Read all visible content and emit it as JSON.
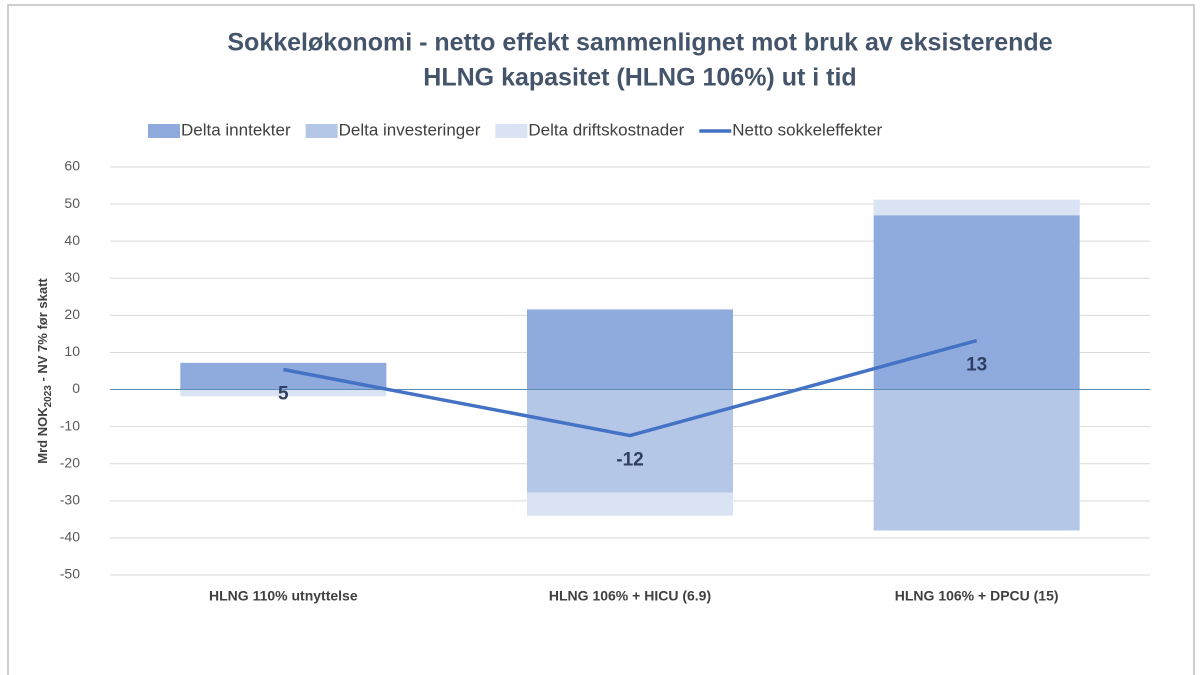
{
  "chart_data": {
    "type": "bar",
    "stacked": true,
    "title": [
      "Sokkeløkonomi - netto effekt sammenlignet mot bruk av eksisterende",
      "HLNG kapasitet (HLNG 106%) ut i tid"
    ],
    "ylabel": {
      "main": "Mrd NOK",
      "sub": "2023",
      "rest": " - NV 7% før skatt"
    },
    "categories": [
      "HLNG 110% utnyttelse",
      "HLNG 106% + HICU (6.9)",
      "HLNG 106% + DPCU (15)"
    ],
    "series": [
      {
        "name": "Delta inntekter",
        "color": "#8faadc",
        "values": [
          7.2,
          21.6,
          47
        ]
      },
      {
        "name": "Delta investeringer",
        "color": "#b4c7e7",
        "values": [
          0,
          -27.8,
          -38
        ]
      },
      {
        "name": "Delta driftskostnader",
        "color": "#dae3f3",
        "values": [
          -1.8,
          -6.2,
          4.2
        ]
      },
      {
        "name": "Netto sokkeleffekter",
        "type": "line",
        "color": "#4472c4",
        "values": [
          5.4,
          -12.4,
          13.2
        ],
        "value_labels": [
          "5",
          "-12",
          "13"
        ]
      }
    ],
    "ylim": [
      -50,
      60
    ],
    "yticks": [
      -50,
      -40,
      -30,
      -20,
      -10,
      0,
      10,
      20,
      30,
      40,
      50,
      60
    ],
    "grid": true,
    "legend": "top"
  }
}
